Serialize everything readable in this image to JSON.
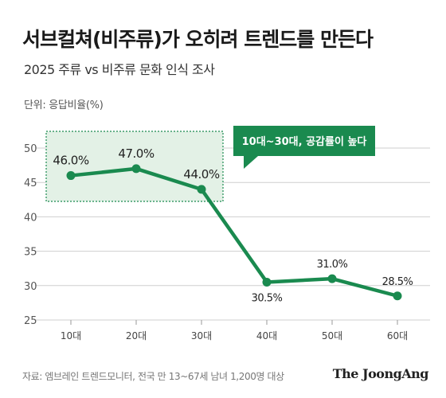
{
  "header": {
    "title": "서브컬쳐(비주류)가 오히려 트렌드를 만든다",
    "subtitle": "2025 주류 vs 비주류 문화 인식 조사",
    "unit": "단위: 응답비율(%)"
  },
  "footer": {
    "source": "자료: 엠브레인 트렌드모니터, 전국 만 13~67세 남녀 1,200명 대상",
    "brand": "The JoongAng"
  },
  "colors": {
    "line": "#1a8a4f",
    "highlight_fill": "#e3f1e6",
    "highlight_border": "#1a8a4f",
    "callout": "#1a8a4f",
    "grid": "#cfcfcf"
  },
  "chart_data": {
    "type": "line",
    "categories": [
      "10대",
      "20대",
      "30대",
      "40대",
      "50대",
      "60대"
    ],
    "values": [
      46.0,
      47.0,
      44.0,
      30.5,
      31.0,
      28.5
    ],
    "data_labels": [
      "46.0%",
      "47.0%",
      "44.0%",
      "30.5%",
      "31.0%",
      "28.5%"
    ],
    "ylim": [
      25,
      50
    ],
    "yticks": [
      25,
      30,
      35,
      40,
      45,
      50
    ],
    "grid": true,
    "annotation": "10대~30대, 공감률이 높다"
  }
}
